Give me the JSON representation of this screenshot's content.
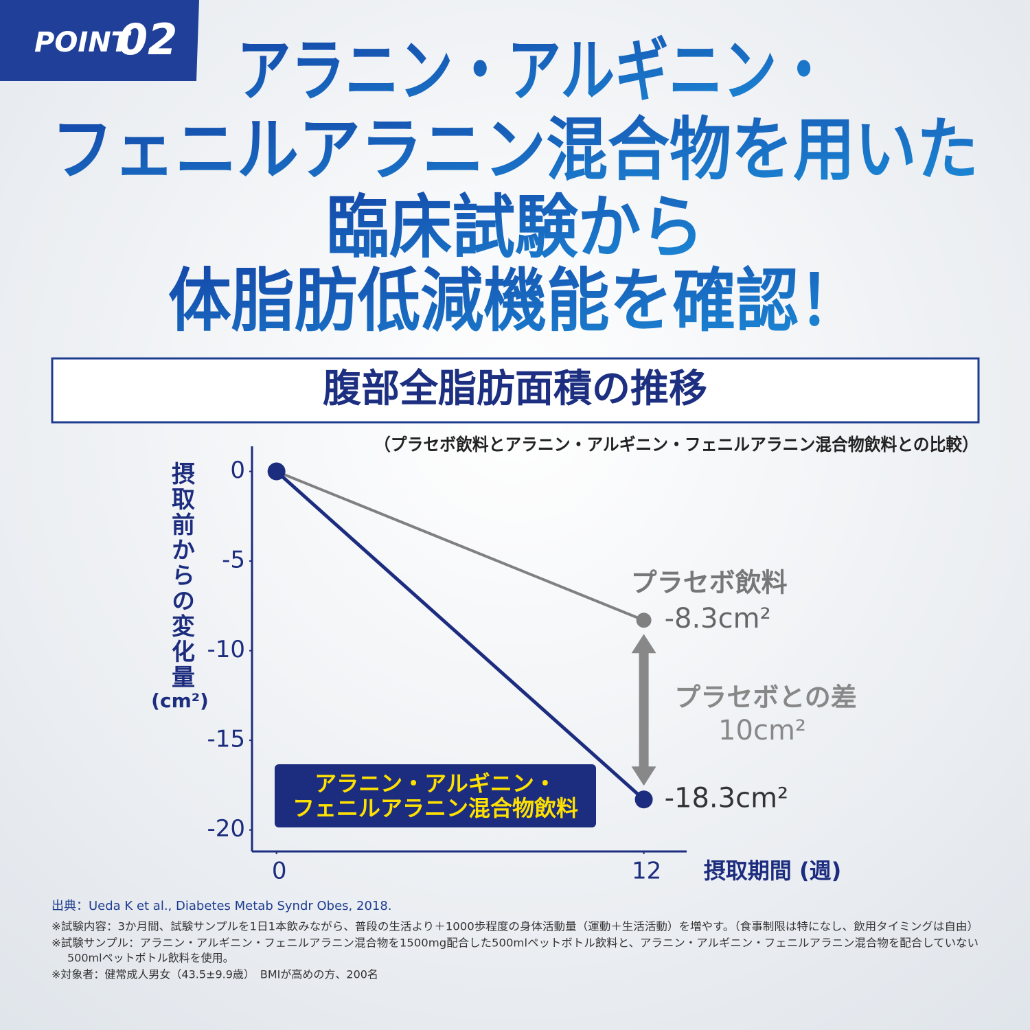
{
  "badge": {
    "label": "POINT",
    "number": "02"
  },
  "headline": [
    "アラニン・アルギニン・",
    "フェニルアラニン混合物を用いた",
    "臨床試験から",
    "体脂肪低減機能を確認！"
  ],
  "box_title": "腹部全脂肪面積の推移",
  "subtitle": "（プラセボ飲料とアラニン・アルギニン・フェニルアラニン混合物飲料との比較）",
  "chart_data": {
    "type": "line",
    "x": [
      0,
      12
    ],
    "xlim": [
      -0.8,
      13.4
    ],
    "xticks": [
      0,
      12
    ],
    "ylim": [
      -21.2,
      1.4
    ],
    "yticks": [
      0,
      -5,
      -10,
      -15,
      -20
    ],
    "y_label": "摂取前からの変化量",
    "y_unit": "(cm²)",
    "x_label": "摂取期間 (週)",
    "series": [
      {
        "name": "プラセボ飲料",
        "color": "#808080",
        "values": [
          0,
          -8.3
        ],
        "value_labels": [
          null,
          "-8.3cm²"
        ]
      },
      {
        "name": "アラニン・アルギニン・\nフェニルアラニン混合物飲料",
        "color": "#1c2c7e",
        "values": [
          0,
          -18.3
        ],
        "value_labels": [
          null,
          "-18.3cm²"
        ]
      }
    ],
    "difference": {
      "label": "プラセボとの差",
      "value": 10,
      "value_label": "10cm²"
    }
  },
  "source": "出典：Ueda K et al., Diabetes Metab Syndr Obes, 2018.",
  "notes": [
    "※試験内容：3か月間、試験サンプルを1日1本飲みながら、普段の生活より＋1000歩程度の身体活動量（運動＋生活活動）を増やす。（食事制限は特になし、飲用タイミングは自由）",
    "※試験サンプル：アラニン・アルギニン・フェニルアラニン混合物を1500mg配合した500mlペットボトル飲料と、アラニン・アルギニン・フェニルアラニン混合物を配合していない",
    "500mlペットボトル飲料を使用。",
    "※対象者：健常成人男女（43.5±9.9歳）　BMIが高めの方、200名"
  ]
}
